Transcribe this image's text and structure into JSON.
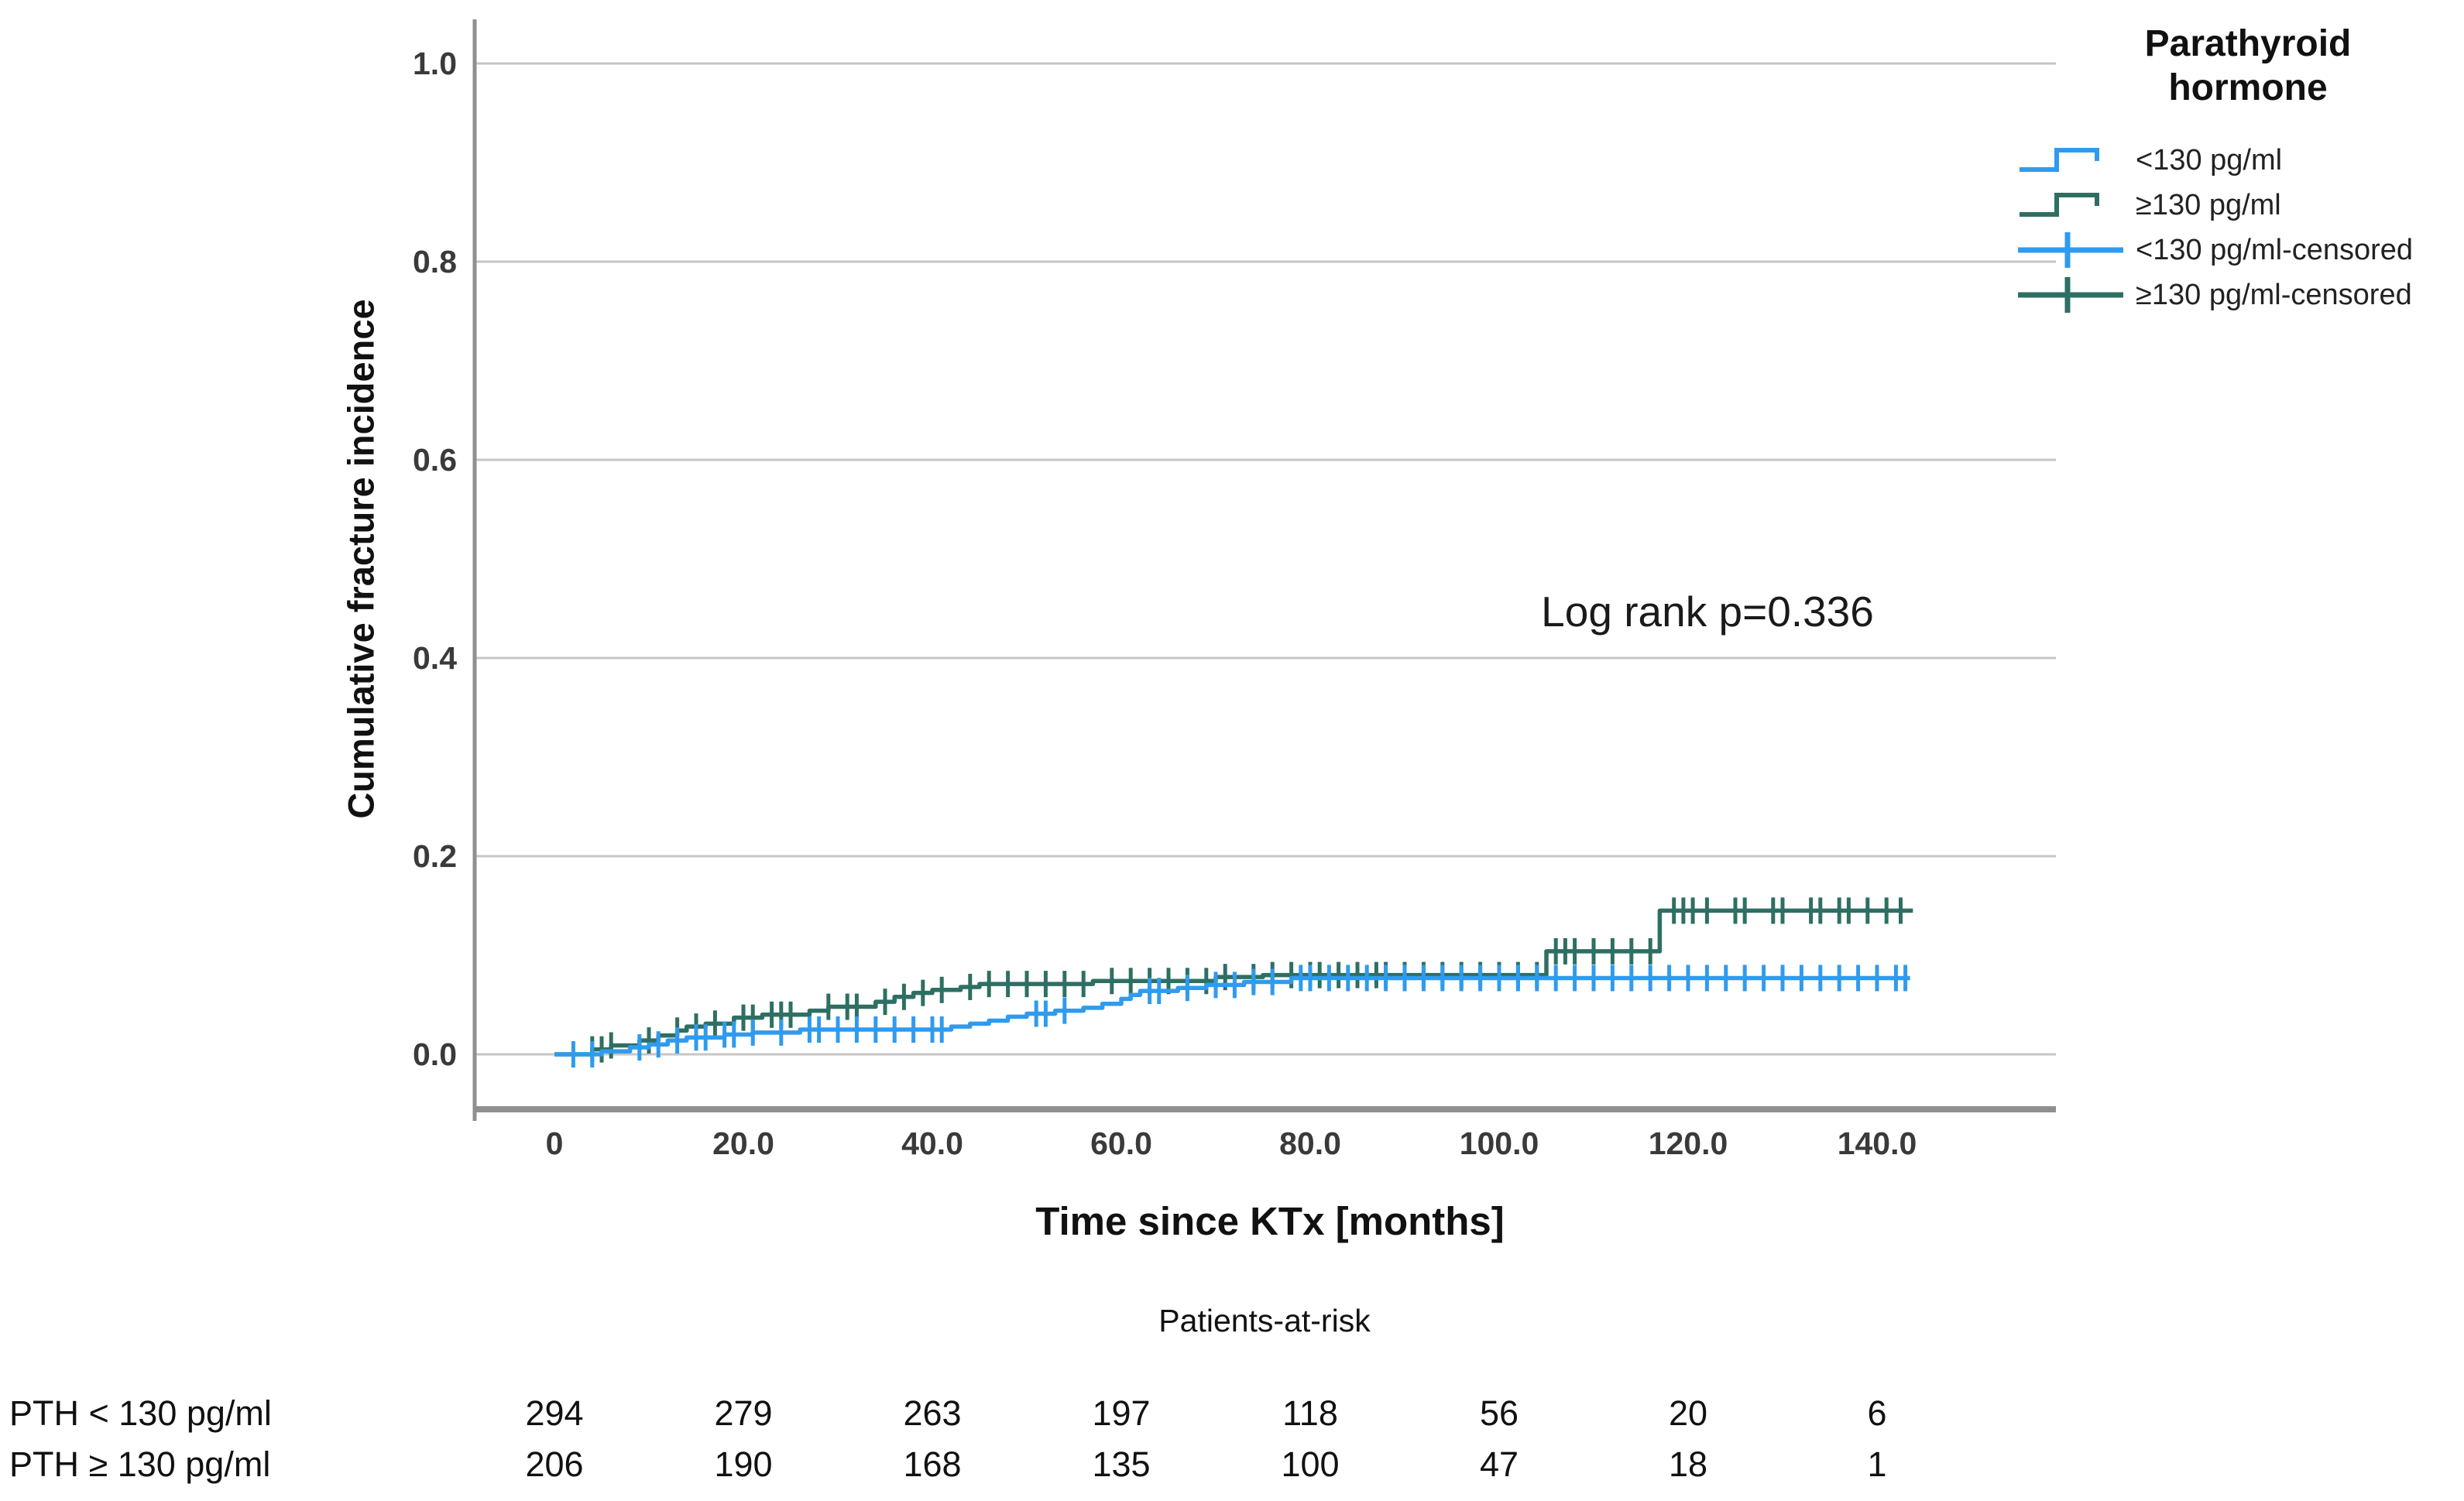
{
  "chart_data": {
    "type": "line",
    "subtype": "kaplan-meier-cumulative-incidence-step",
    "title": "",
    "xlabel": "Time since KTx [months]",
    "ylabel": "Cumulative fracture incidence",
    "xlim": [
      0,
      160
    ],
    "ylim": [
      0,
      1.05
    ],
    "grid": true,
    "x_ticks": {
      "values": [
        0,
        20,
        40,
        60,
        80,
        100,
        120,
        140
      ],
      "labels": [
        "0",
        "20.0",
        "40.0",
        "60.0",
        "80.0",
        "100.0",
        "120.0",
        "140.0"
      ]
    },
    "y_ticks": {
      "values": [
        0,
        0.2,
        0.4,
        0.6,
        0.8,
        1.0
      ],
      "labels": [
        "0.0",
        "0.2",
        "0.4",
        "0.6",
        "0.8",
        "1.0"
      ]
    },
    "annotation": {
      "text": "Log rank p=0.336"
    },
    "legend": {
      "title_lines": [
        "Parathyroid",
        "hormone"
      ],
      "position": "top-right-outside",
      "entries": [
        {
          "label": "<130 pg/ml",
          "color": "#2F9BEE",
          "symbol": "step"
        },
        {
          "label": "≥130 pg/ml",
          "color": "#2E6F63",
          "symbol": "step"
        },
        {
          "label": "<130 pg/ml-censored",
          "color": "#2F9BEE",
          "symbol": "censored"
        },
        {
          "label": "≥130 pg/ml-censored",
          "color": "#2E6F63",
          "symbol": "censored"
        }
      ]
    },
    "series": [
      {
        "name": "≥130 pg/ml",
        "color": "#2E6F63",
        "steps": [
          [
            0,
            0
          ],
          [
            4,
            0.005
          ],
          [
            6,
            0.009
          ],
          [
            9,
            0.014
          ],
          [
            11,
            0.019
          ],
          [
            13,
            0.024
          ],
          [
            14,
            0.028
          ],
          [
            16,
            0.031
          ],
          [
            19,
            0.037
          ],
          [
            22,
            0.04
          ],
          [
            27,
            0.044
          ],
          [
            29,
            0.048
          ],
          [
            34,
            0.053
          ],
          [
            36,
            0.058
          ],
          [
            38,
            0.062
          ],
          [
            40,
            0.065
          ],
          [
            43,
            0.068
          ],
          [
            45,
            0.071
          ],
          [
            57,
            0.074
          ],
          [
            70,
            0.078
          ],
          [
            75,
            0.08
          ],
          [
            105,
            0.104
          ],
          [
            117,
            0.145
          ],
          [
            143.8,
            0.145
          ]
        ],
        "censored_times": [
          4,
          5,
          6,
          10,
          13,
          15,
          17,
          20,
          21,
          23,
          24,
          25,
          29,
          31,
          32,
          35,
          37,
          39,
          41,
          44,
          46,
          48,
          50,
          52,
          54,
          56,
          59,
          61,
          63,
          65,
          67,
          69,
          71,
          74,
          76,
          78,
          80,
          81,
          83,
          85,
          87,
          88,
          90,
          92,
          94,
          96,
          98,
          100,
          102,
          104,
          106,
          107,
          108,
          110,
          112,
          114,
          116,
          118.5,
          119.5,
          120.5,
          122,
          125,
          126,
          129,
          130,
          133,
          134,
          136,
          137,
          139,
          141,
          142.5
        ]
      },
      {
        "name": "<130 pg/ml",
        "color": "#2F9BEE",
        "steps": [
          [
            0,
            0
          ],
          [
            5,
            0.003
          ],
          [
            8,
            0.007
          ],
          [
            10,
            0.01
          ],
          [
            12,
            0.014
          ],
          [
            14,
            0.017
          ],
          [
            18,
            0.02
          ],
          [
            21,
            0.022
          ],
          [
            26,
            0.025
          ],
          [
            42,
            0.028
          ],
          [
            44,
            0.031
          ],
          [
            46,
            0.034
          ],
          [
            48,
            0.038
          ],
          [
            50,
            0.041
          ],
          [
            53,
            0.044
          ],
          [
            56,
            0.047
          ],
          [
            58,
            0.051
          ],
          [
            60,
            0.056
          ],
          [
            61,
            0.06
          ],
          [
            62,
            0.064
          ],
          [
            66,
            0.067
          ],
          [
            69,
            0.07
          ],
          [
            73,
            0.073
          ],
          [
            78,
            0.077
          ],
          [
            143.5,
            0.077
          ]
        ],
        "censored_times": [
          2,
          4,
          9,
          11,
          13,
          15,
          16,
          18,
          19,
          21,
          24,
          27,
          28,
          30,
          32,
          34,
          36,
          38,
          40,
          41,
          51,
          52,
          54,
          63,
          64,
          67,
          70,
          72,
          74,
          76,
          79,
          80,
          82,
          84,
          86,
          88,
          90,
          92,
          94,
          96,
          98,
          100,
          102,
          104,
          106,
          108,
          110,
          112,
          114,
          116,
          118,
          120,
          122,
          124,
          126,
          128,
          130,
          132,
          134,
          136,
          138,
          140,
          142,
          143
        ]
      }
    ]
  },
  "at_risk": {
    "title": "Patients-at-risk",
    "time_points": [
      0,
      20,
      40,
      60,
      80,
      100,
      120,
      140
    ],
    "rows": [
      {
        "label": "PTH < 130 pg/ml",
        "values": [
          "294",
          "279",
          "263",
          "197",
          "118",
          "56",
          "20",
          "6"
        ]
      },
      {
        "label": "PTH ≥ 130 pg/ml",
        "values": [
          "206",
          "190",
          "168",
          "135",
          "100",
          "47",
          "18",
          "1"
        ]
      }
    ]
  },
  "style": {
    "grid_color": "#C6C6C6",
    "axis_color": "#8F8F8F"
  }
}
